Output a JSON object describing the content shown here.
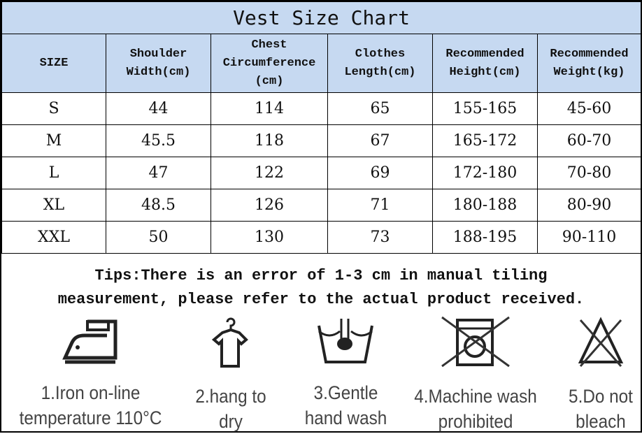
{
  "title": "Vest Size Chart",
  "headers": [
    "SIZE",
    "Shoulder Width(cm)",
    "Chest Circumference (cm)",
    "Clothes Length(cm)",
    "Recommended Height(cm)",
    "Recommended Weight(kg)"
  ],
  "rows": [
    [
      "S",
      "44",
      "114",
      "65",
      "155-165",
      "45-60"
    ],
    [
      "M",
      "45.5",
      "118",
      "67",
      "165-172",
      "60-70"
    ],
    [
      "L",
      "47",
      "122",
      "69",
      "172-180",
      "70-80"
    ],
    [
      "XL",
      "48.5",
      "126",
      "71",
      "180-188",
      "80-90"
    ],
    [
      "XXL",
      "50",
      "130",
      "73",
      "188-195",
      "90-110"
    ]
  ],
  "tips": [
    "Tips:There is an error of 1-3 cm in manual tiling",
    "measurement, please refer to the actual product received."
  ],
  "care": [
    {
      "icon": "iron-icon",
      "line1": "1.Iron on-line",
      "line2": "temperature 110°C"
    },
    {
      "icon": "hanger-shirt-icon",
      "line1": "2.hang to",
      "line2": "dry"
    },
    {
      "icon": "hand-wash-icon",
      "line1": "3.Gentle",
      "line2": "hand wash"
    },
    {
      "icon": "no-machine-wash-icon",
      "line1": "4.Machine wash",
      "line2": "prohibited"
    },
    {
      "icon": "no-bleach-icon",
      "line1": "5.Do not",
      "line2": "bleach"
    }
  ],
  "colors": {
    "header_bg": "#c6d9f1"
  }
}
